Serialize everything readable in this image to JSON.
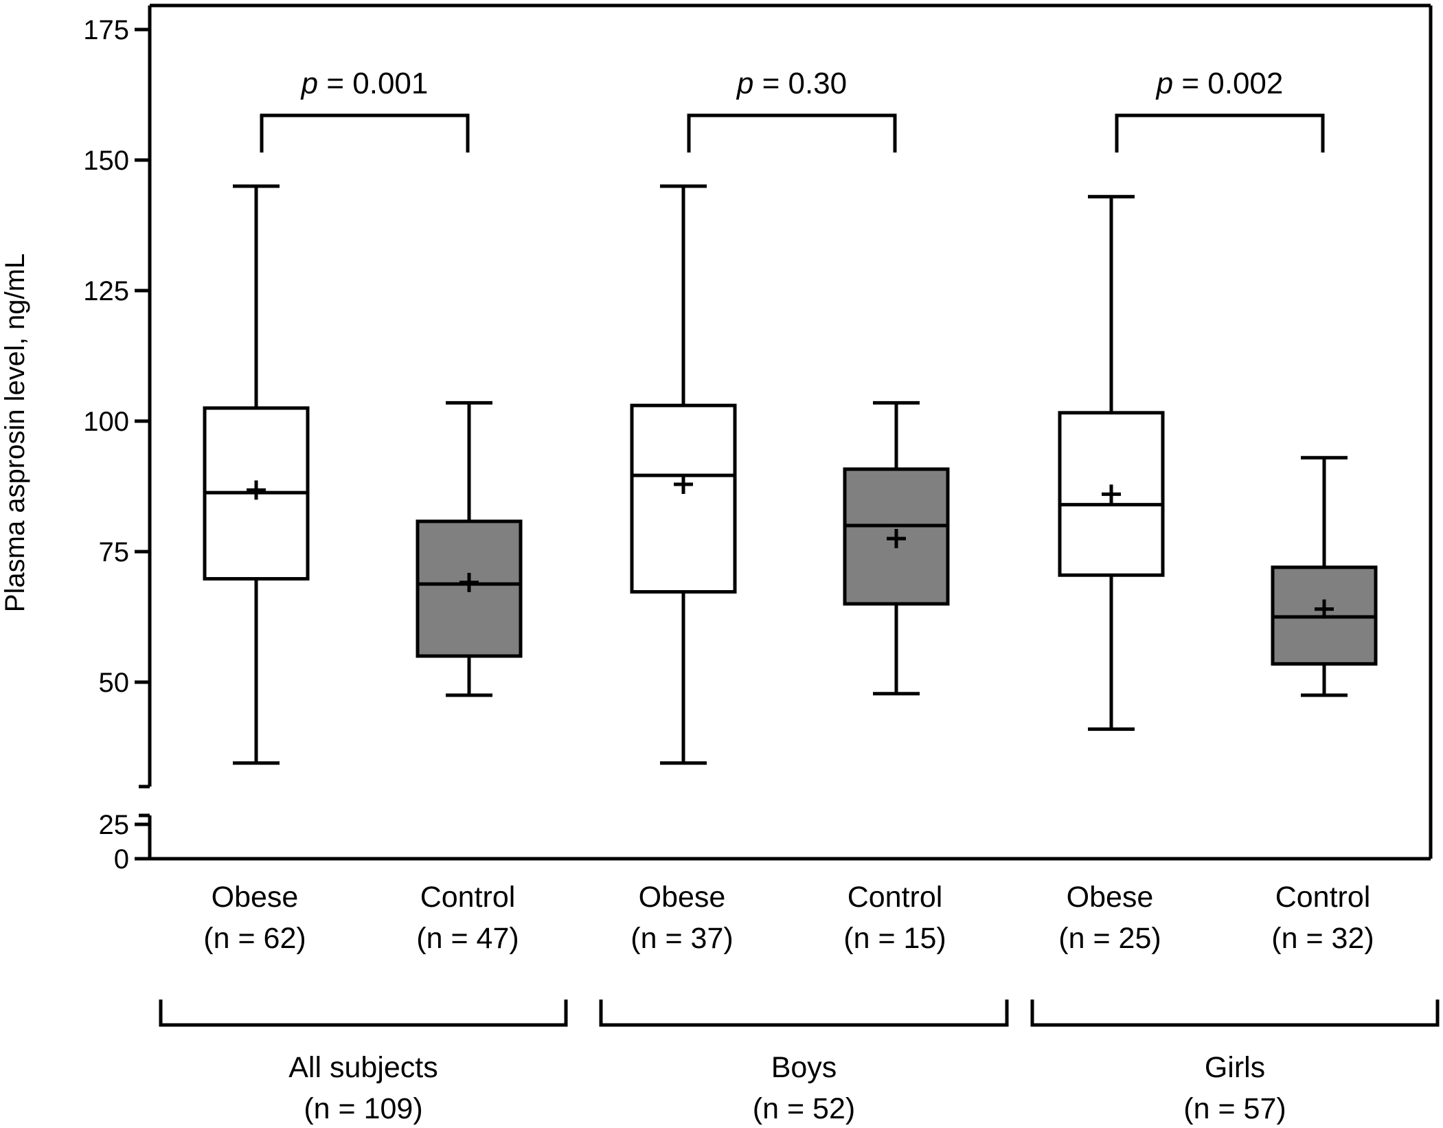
{
  "chart_data": {
    "type": "box",
    "ylabel": "Plasma asprosin level, ng/mL",
    "ylim": [
      0,
      175
    ],
    "axis_break": {
      "lower_ticks": [
        0,
        25
      ],
      "upper_start": 30
    },
    "y_ticks": [
      {
        "value": 0,
        "label": "0"
      },
      {
        "value": 25,
        "label": "25"
      },
      {
        "value": 50,
        "label": "50"
      },
      {
        "value": 75,
        "label": "75"
      },
      {
        "value": 100,
        "label": "100"
      },
      {
        "value": 125,
        "label": "125"
      },
      {
        "value": 150,
        "label": "150"
      },
      {
        "value": 175,
        "label": "175"
      }
    ],
    "boxes": [
      {
        "name": "Obese",
        "n_label": "(n = 62)",
        "fill": "#ffffff",
        "whisker_low": 34.5,
        "q1": 69.8,
        "median": 86.3,
        "q3": 102.5,
        "whisker_high": 145,
        "mean": 86.8
      },
      {
        "name": "Control",
        "n_label": "(n = 47)",
        "fill": "#808080",
        "whisker_low": 47.5,
        "q1": 55,
        "median": 68.8,
        "q3": 80.8,
        "whisker_high": 103.5,
        "mean": 69.1
      },
      {
        "name": "Obese",
        "n_label": "(n = 37)",
        "fill": "#ffffff",
        "whisker_low": 34.5,
        "q1": 67.3,
        "median": 89.6,
        "q3": 103,
        "whisker_high": 145,
        "mean": 87.9
      },
      {
        "name": "Control",
        "n_label": "(n = 15)",
        "fill": "#808080",
        "whisker_low": 47.8,
        "q1": 65,
        "median": 80,
        "q3": 90.8,
        "whisker_high": 103.5,
        "mean": 77.5
      },
      {
        "name": "Obese",
        "n_label": "(n = 25)",
        "fill": "#ffffff",
        "whisker_low": 41,
        "q1": 70.5,
        "median": 84,
        "q3": 101.6,
        "whisker_high": 143,
        "mean": 86
      },
      {
        "name": "Control",
        "n_label": "(n = 32)",
        "fill": "#808080",
        "whisker_low": 47.5,
        "q1": 53.5,
        "median": 62.5,
        "q3": 72,
        "whisker_high": 93,
        "mean": 64
      }
    ],
    "comparisons": [
      {
        "label_italic": "p",
        "label_rest": " = 0.001"
      },
      {
        "label_italic": "p",
        "label_rest": " = 0.30"
      },
      {
        "label_italic": "p",
        "label_rest": " = 0.002"
      }
    ],
    "groups": [
      {
        "name": "All subjects",
        "n_label": "(n = 109)"
      },
      {
        "name": "Boys",
        "n_label": "(n = 52)"
      },
      {
        "name": "Girls",
        "n_label": "(n = 57)"
      }
    ]
  }
}
